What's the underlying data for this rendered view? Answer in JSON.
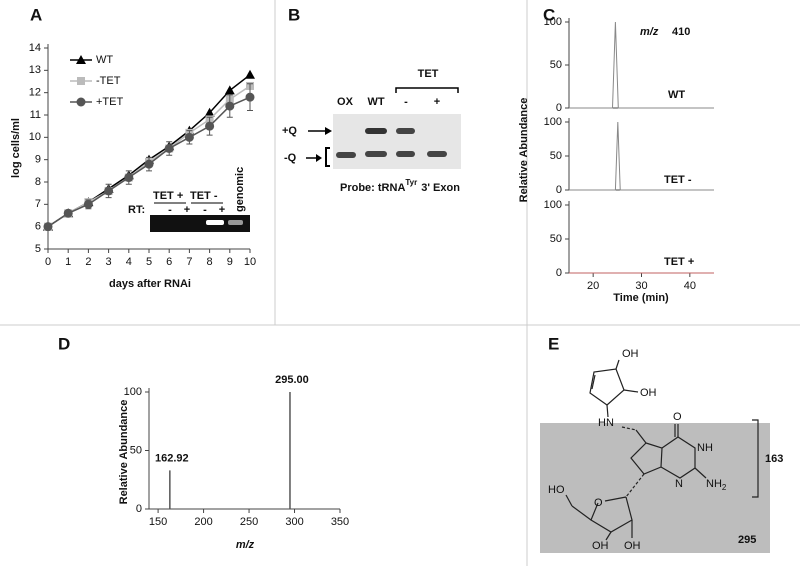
{
  "chart_data": [
    {
      "panel": "A",
      "type": "line",
      "xlabel": "days after RNAi",
      "ylabel": "log cells/ml",
      "x": [
        0,
        1,
        2,
        3,
        4,
        5,
        6,
        7,
        8,
        9,
        10
      ],
      "xlim": [
        0,
        10
      ],
      "xticks": [
        0,
        1,
        2,
        3,
        4,
        5,
        6,
        7,
        8,
        9,
        10
      ],
      "ylim": [
        5,
        14
      ],
      "yticks": [
        5,
        6,
        7,
        8,
        9,
        10,
        11,
        12,
        13,
        14
      ],
      "legend": "upper left",
      "series": [
        {
          "name": "WT",
          "color": "#000000",
          "marker": "triangle",
          "values": [
            6,
            6.6,
            7.1,
            7.7,
            8.3,
            9.0,
            9.6,
            10.3,
            11.1,
            12.1,
            12.8
          ]
        },
        {
          "name": "-TET",
          "color": "#bbbbbb",
          "marker": "square",
          "values": [
            6,
            6.6,
            7.1,
            7.6,
            8.2,
            8.9,
            9.5,
            10.2,
            10.8,
            11.7,
            12.3
          ]
        },
        {
          "name": "+TET",
          "color": "#555555",
          "marker": "circle",
          "values": [
            6,
            6.6,
            7.0,
            7.6,
            8.2,
            8.8,
            9.5,
            10.0,
            10.5,
            11.4,
            11.8
          ],
          "errors": [
            0,
            0.1,
            0.2,
            0.3,
            0.3,
            0.3,
            0.3,
            0.3,
            0.4,
            0.5,
            0.6
          ]
        }
      ],
      "inset": {
        "groups": [
          "TET +",
          "TET -"
        ],
        "rt_label": "RT:",
        "lanes": [
          "-",
          "+",
          "-",
          "+"
        ],
        "extra_lane": "genomic"
      }
    },
    {
      "panel": "C",
      "type": "line",
      "title_italic": "m/z",
      "title": "410",
      "x": [
        15,
        24,
        24.6,
        25.2,
        45
      ],
      "xlim": [
        15,
        45
      ],
      "ylim": [
        0,
        100
      ],
      "yticks": [
        0,
        50,
        100
      ],
      "series": [
        {
          "name": "WT",
          "color": "#888888",
          "values": [
            0,
            0,
            100,
            0,
            0
          ]
        }
      ]
    },
    {
      "type": "line",
      "ylabel": "Relative Abundance",
      "x": [
        15,
        24.6,
        25.1,
        25.6,
        45
      ],
      "xlim": [
        15,
        45
      ],
      "ylim": [
        0,
        100
      ],
      "yticks": [
        0,
        50,
        100
      ],
      "series": [
        {
          "name": "TET -",
          "color": "#888888",
          "values": [
            0,
            0,
            100,
            0,
            0
          ]
        }
      ]
    },
    {
      "type": "line",
      "xlabel": "Time (min)",
      "x": [
        15,
        45
      ],
      "xlim": [
        15,
        45
      ],
      "xticks": [
        20,
        30,
        40
      ],
      "ylim": [
        0,
        100
      ],
      "yticks": [
        0,
        50,
        100
      ],
      "series": [
        {
          "name": "TET +",
          "color": "#c06060",
          "values": [
            0,
            0
          ]
        }
      ]
    },
    {
      "panel": "D",
      "type": "stick",
      "xlabel": "m/z",
      "ylabel": "Relative Abundance",
      "x": [
        162.92,
        295.0
      ],
      "x_labels": [
        "162.92",
        "295.00"
      ],
      "values": [
        33,
        100
      ],
      "color": "#555555",
      "xlim": [
        140,
        350
      ],
      "xticks": [
        150,
        200,
        250,
        300,
        350
      ],
      "ylim": [
        0,
        100
      ],
      "yticks": [
        0,
        50,
        100
      ]
    }
  ],
  "gel_b": {
    "panel": "B",
    "group_label": "TET",
    "lanes": [
      "OX",
      "WT",
      "-",
      "+"
    ],
    "bands": [
      "+Q",
      "-Q"
    ],
    "probe": "Probe: tRNA",
    "probe_sup": "Tyr",
    "probe_end": "3' Exon"
  },
  "structure_e": {
    "panel": "E",
    "atoms": [
      "OH",
      "OH",
      "HN",
      "O",
      "NH",
      "N",
      "HO",
      "O",
      "OH",
      "OH"
    ],
    "amine": "NH",
    "amine_sub": "2",
    "fragment_label": "163",
    "mass_label": "295"
  }
}
